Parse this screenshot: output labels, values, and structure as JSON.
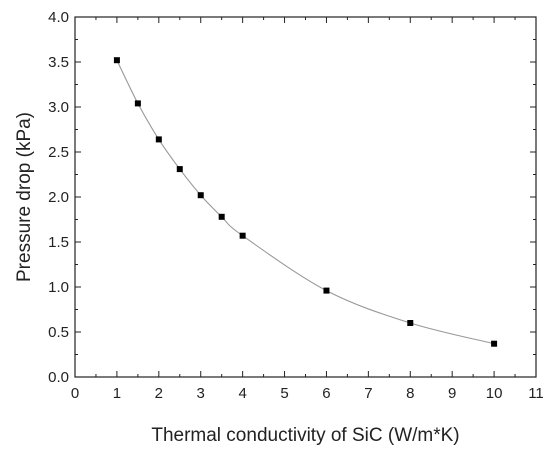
{
  "chart_data": {
    "type": "line",
    "title": "",
    "xlabel": "Thermal conductivity of SiC (W/m*K)",
    "ylabel": "Pressure drop (kPa)",
    "xlim": [
      0,
      11
    ],
    "ylim": [
      0,
      4
    ],
    "x_ticks": [
      "0",
      "1",
      "2",
      "3",
      "4",
      "5",
      "6",
      "7",
      "8",
      "9",
      "10",
      "11"
    ],
    "y_ticks": [
      "0.0",
      "0.5",
      "1.0",
      "1.5",
      "2.0",
      "2.5",
      "3.0",
      "3.5",
      "4.0"
    ],
    "grid": false,
    "legend": "none",
    "series": [
      {
        "x": [
          1,
          1.5,
          2,
          2.5,
          3,
          3.5,
          4,
          6,
          8,
          10
        ],
        "y": [
          3.52,
          3.04,
          2.64,
          2.31,
          2.02,
          1.78,
          1.57,
          0.96,
          0.6,
          0.37
        ],
        "marker": "square",
        "line_color": "#999999",
        "marker_color": "#000000"
      }
    ]
  }
}
